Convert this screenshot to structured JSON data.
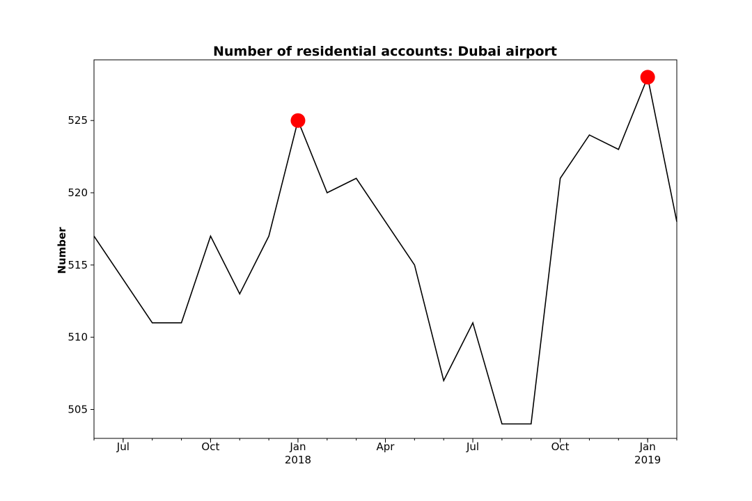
{
  "chart_data": {
    "type": "line",
    "title": "Number of residential accounts: Dubai airport",
    "xlabel": "",
    "ylabel": "Number",
    "x": [
      "2017-06",
      "2017-07",
      "2017-08",
      "2017-09",
      "2017-10",
      "2017-11",
      "2017-12",
      "2018-01",
      "2018-02",
      "2018-03",
      "2018-04",
      "2018-05",
      "2018-06",
      "2018-07",
      "2018-08",
      "2018-09",
      "2018-10",
      "2018-11",
      "2018-12",
      "2019-01",
      "2019-02"
    ],
    "series": [
      {
        "values": [
          517,
          514,
          511,
          511,
          517,
          513,
          517,
          525,
          520,
          521,
          518,
          515,
          507,
          511,
          504,
          504,
          521,
          524,
          523,
          528,
          518
        ],
        "color": "#000000"
      }
    ],
    "highlights": [
      {
        "x": "2018-01",
        "y": 525,
        "color": "#ff0000"
      },
      {
        "x": "2019-01",
        "y": 528,
        "color": "#ff0000"
      }
    ],
    "xlim": [
      "2017-06",
      "2019-02"
    ],
    "ylim": [
      503,
      529.2
    ],
    "yticks": [
      505,
      510,
      515,
      520,
      525
    ],
    "xticks": [
      {
        "x": "2017-07",
        "label": "Jul",
        "sublabel": ""
      },
      {
        "x": "2017-10",
        "label": "Oct",
        "sublabel": ""
      },
      {
        "x": "2018-01",
        "label": "Jan",
        "sublabel": "2018"
      },
      {
        "x": "2018-04",
        "label": "Apr",
        "sublabel": ""
      },
      {
        "x": "2018-07",
        "label": "Jul",
        "sublabel": ""
      },
      {
        "x": "2018-10",
        "label": "Oct",
        "sublabel": ""
      },
      {
        "x": "2019-01",
        "label": "Jan",
        "sublabel": "2019"
      }
    ],
    "grid": false,
    "legend": "none"
  }
}
